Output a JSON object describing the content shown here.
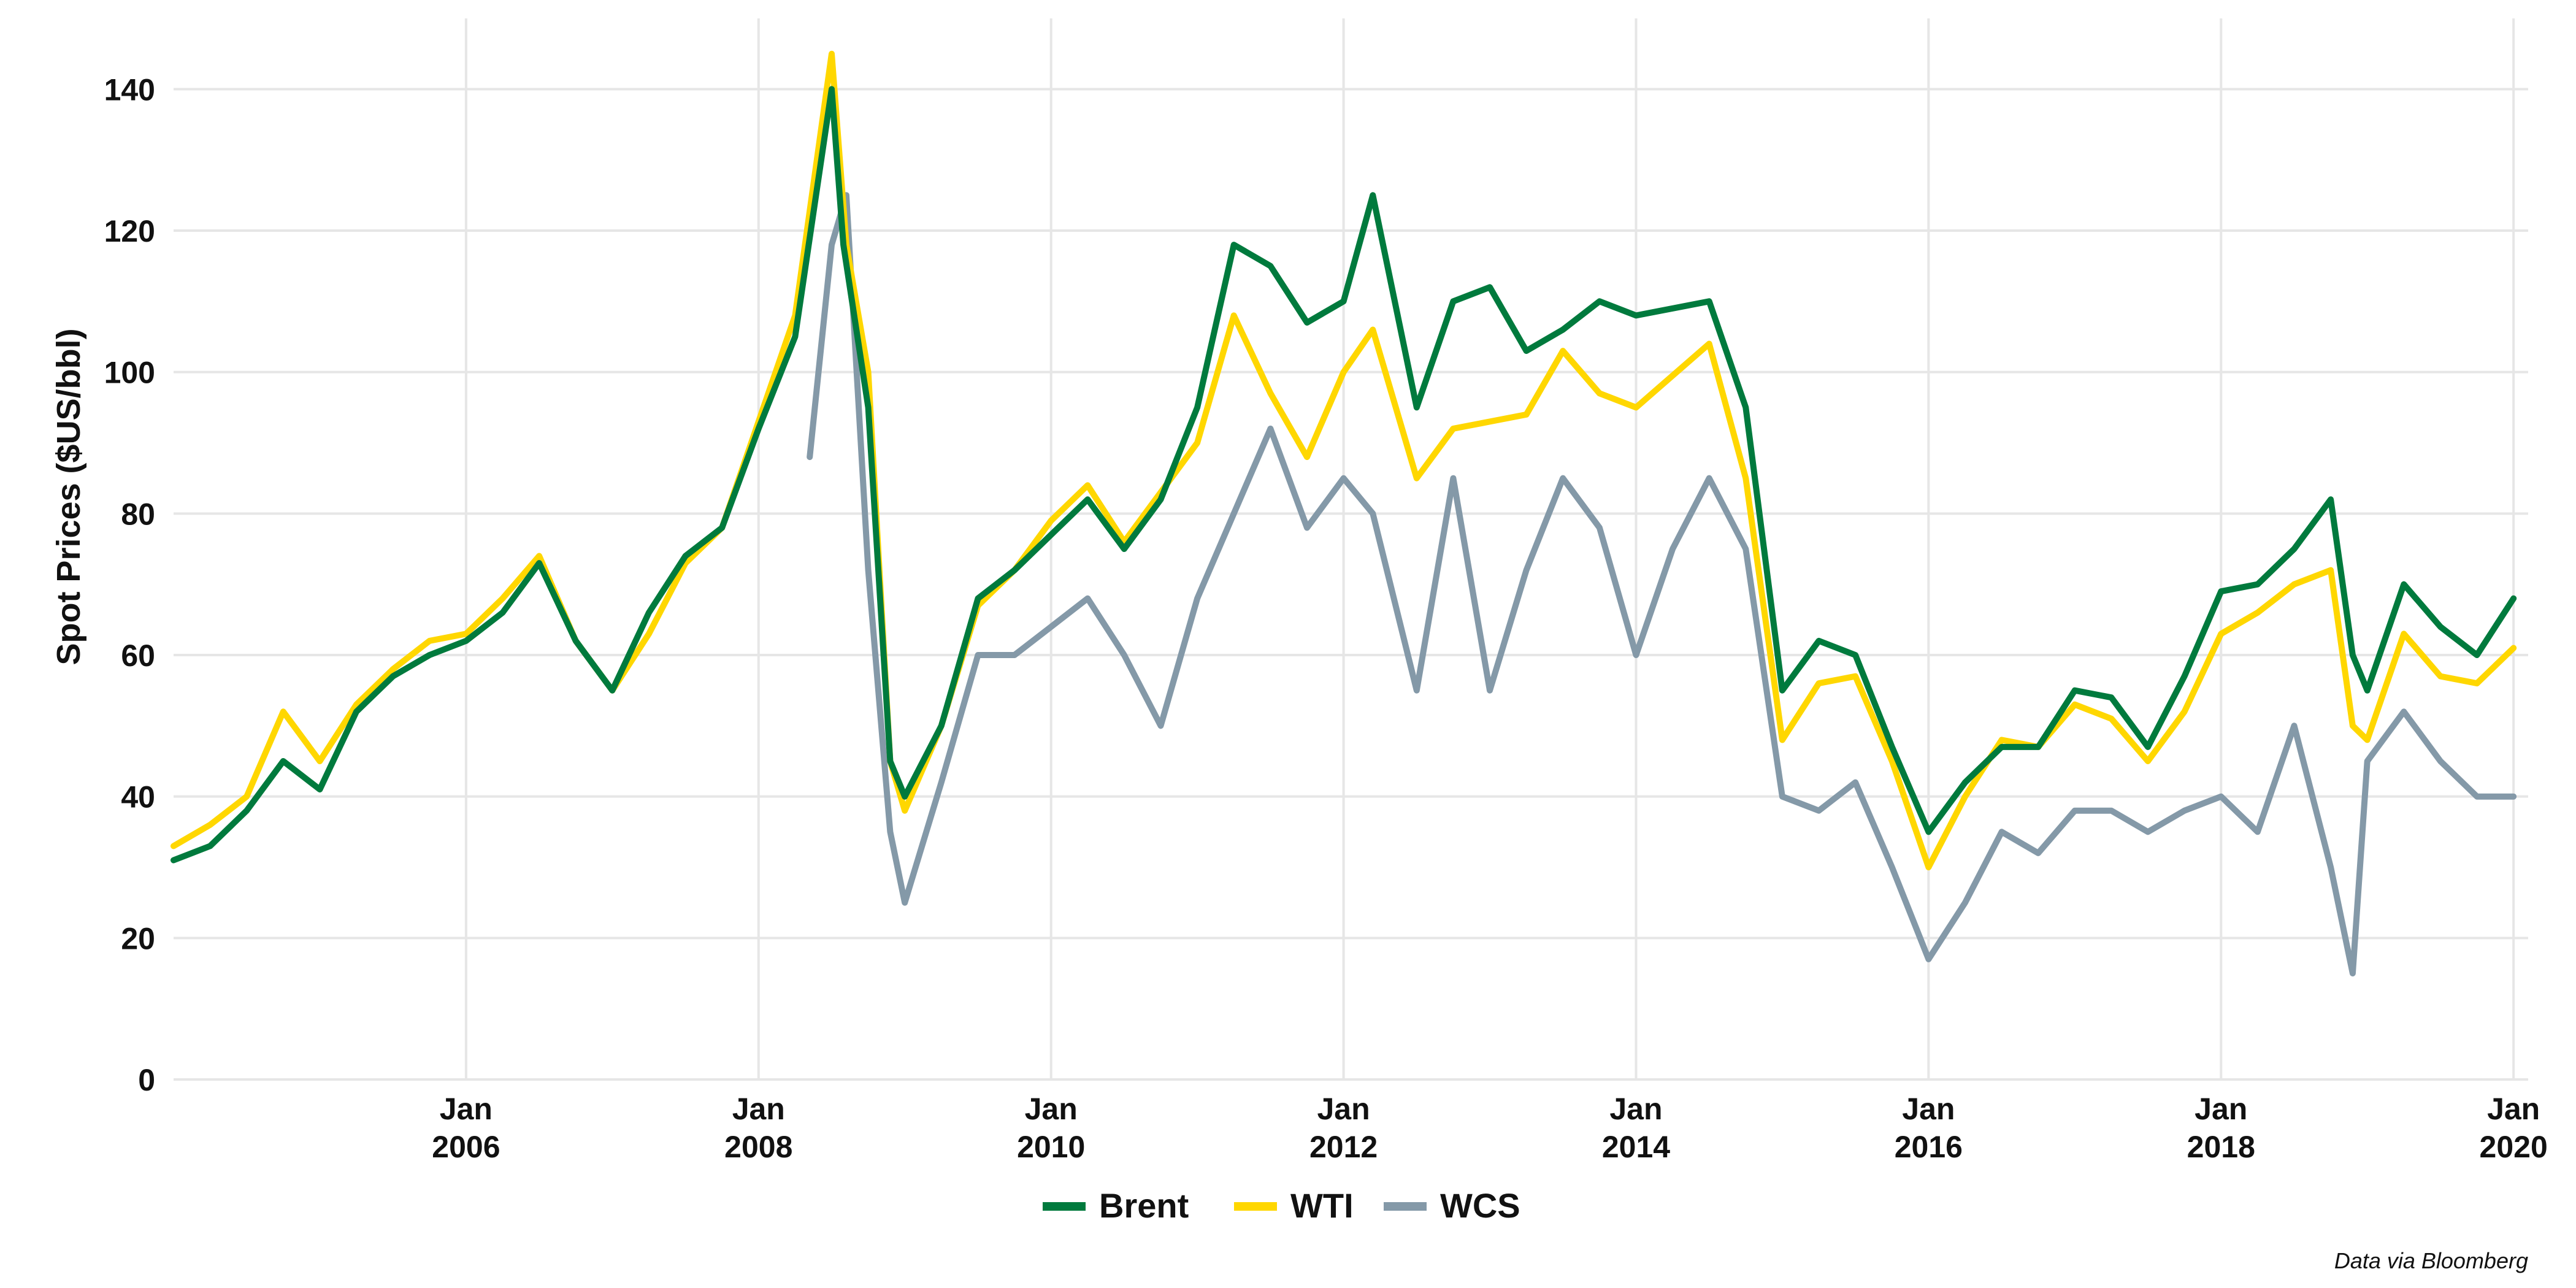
{
  "chart_data": {
    "type": "line",
    "title": "",
    "ylabel": "Spot Prices ($US/bbl)",
    "xlabel": "",
    "ylim": [
      0,
      150
    ],
    "y_ticks": [
      0,
      20,
      40,
      60,
      80,
      100,
      120,
      140
    ],
    "y_tick_labels": [
      "0",
      "20",
      "40",
      "60",
      "80",
      "100",
      "120",
      "140"
    ],
    "x_range": [
      2004.0,
      2020.1
    ],
    "x_ticks": [
      {
        "value": 2006,
        "line1": "Jan",
        "line2": "2006"
      },
      {
        "value": 2008,
        "line1": "Jan",
        "line2": "2008"
      },
      {
        "value": 2010,
        "line1": "Jan",
        "line2": "2010"
      },
      {
        "value": 2012,
        "line1": "Jan",
        "line2": "2012"
      },
      {
        "value": 2014,
        "line1": "Jan",
        "line2": "2014"
      },
      {
        "value": 2016,
        "line1": "Jan",
        "line2": "2016"
      },
      {
        "value": 2018,
        "line1": "Jan",
        "line2": "2018"
      },
      {
        "value": 2020,
        "line1": "Jan",
        "line2": "2020"
      }
    ],
    "grid": true,
    "legend_position": "bottom",
    "caption": "Data via Bloomberg",
    "series": [
      {
        "name": "Brent",
        "color": "#007A3D",
        "points": [
          [
            2004.0,
            31
          ],
          [
            2004.25,
            33
          ],
          [
            2004.5,
            38
          ],
          [
            2004.75,
            45
          ],
          [
            2005.0,
            41
          ],
          [
            2005.25,
            52
          ],
          [
            2005.5,
            57
          ],
          [
            2005.75,
            60
          ],
          [
            2006.0,
            62
          ],
          [
            2006.25,
            66
          ],
          [
            2006.5,
            73
          ],
          [
            2006.75,
            62
          ],
          [
            2007.0,
            55
          ],
          [
            2007.25,
            66
          ],
          [
            2007.5,
            74
          ],
          [
            2007.75,
            78
          ],
          [
            2008.0,
            92
          ],
          [
            2008.25,
            105
          ],
          [
            2008.5,
            140
          ],
          [
            2008.58,
            118
          ],
          [
            2008.75,
            95
          ],
          [
            2008.9,
            45
          ],
          [
            2009.0,
            40
          ],
          [
            2009.25,
            50
          ],
          [
            2009.5,
            68
          ],
          [
            2009.75,
            72
          ],
          [
            2010.0,
            77
          ],
          [
            2010.25,
            82
          ],
          [
            2010.5,
            75
          ],
          [
            2010.75,
            82
          ],
          [
            2011.0,
            95
          ],
          [
            2011.25,
            118
          ],
          [
            2011.5,
            115
          ],
          [
            2011.75,
            107
          ],
          [
            2012.0,
            110
          ],
          [
            2012.2,
            125
          ],
          [
            2012.5,
            95
          ],
          [
            2012.75,
            110
          ],
          [
            2013.0,
            112
          ],
          [
            2013.25,
            103
          ],
          [
            2013.5,
            106
          ],
          [
            2013.75,
            110
          ],
          [
            2014.0,
            108
          ],
          [
            2014.5,
            110
          ],
          [
            2014.75,
            95
          ],
          [
            2015.0,
            55
          ],
          [
            2015.25,
            62
          ],
          [
            2015.5,
            60
          ],
          [
            2015.75,
            47
          ],
          [
            2016.0,
            35
          ],
          [
            2016.25,
            42
          ],
          [
            2016.5,
            47
          ],
          [
            2016.75,
            47
          ],
          [
            2017.0,
            55
          ],
          [
            2017.25,
            54
          ],
          [
            2017.5,
            47
          ],
          [
            2017.75,
            57
          ],
          [
            2018.0,
            69
          ],
          [
            2018.25,
            70
          ],
          [
            2018.5,
            75
          ],
          [
            2018.75,
            82
          ],
          [
            2018.9,
            60
          ],
          [
            2019.0,
            55
          ],
          [
            2019.25,
            70
          ],
          [
            2019.5,
            64
          ],
          [
            2019.75,
            60
          ],
          [
            2020.0,
            68
          ]
        ]
      },
      {
        "name": "WTI",
        "color": "#FFD700",
        "points": [
          [
            2004.0,
            33
          ],
          [
            2004.25,
            36
          ],
          [
            2004.5,
            40
          ],
          [
            2004.75,
            52
          ],
          [
            2005.0,
            45
          ],
          [
            2005.25,
            53
          ],
          [
            2005.5,
            58
          ],
          [
            2005.75,
            62
          ],
          [
            2006.0,
            63
          ],
          [
            2006.25,
            68
          ],
          [
            2006.5,
            74
          ],
          [
            2006.75,
            62
          ],
          [
            2007.0,
            55
          ],
          [
            2007.25,
            63
          ],
          [
            2007.5,
            73
          ],
          [
            2007.75,
            78
          ],
          [
            2008.0,
            93
          ],
          [
            2008.25,
            108
          ],
          [
            2008.5,
            145
          ],
          [
            2008.6,
            118
          ],
          [
            2008.75,
            100
          ],
          [
            2008.9,
            45
          ],
          [
            2009.0,
            38
          ],
          [
            2009.25,
            50
          ],
          [
            2009.5,
            67
          ],
          [
            2009.75,
            72
          ],
          [
            2010.0,
            79
          ],
          [
            2010.25,
            84
          ],
          [
            2010.5,
            76
          ],
          [
            2010.75,
            83
          ],
          [
            2011.0,
            90
          ],
          [
            2011.25,
            108
          ],
          [
            2011.5,
            97
          ],
          [
            2011.75,
            88
          ],
          [
            2012.0,
            100
          ],
          [
            2012.2,
            106
          ],
          [
            2012.5,
            85
          ],
          [
            2012.75,
            92
          ],
          [
            2013.0,
            93
          ],
          [
            2013.25,
            94
          ],
          [
            2013.5,
            103
          ],
          [
            2013.75,
            97
          ],
          [
            2014.0,
            95
          ],
          [
            2014.5,
            104
          ],
          [
            2014.75,
            85
          ],
          [
            2015.0,
            48
          ],
          [
            2015.25,
            56
          ],
          [
            2015.5,
            57
          ],
          [
            2015.75,
            45
          ],
          [
            2016.0,
            30
          ],
          [
            2016.25,
            40
          ],
          [
            2016.5,
            48
          ],
          [
            2016.75,
            47
          ],
          [
            2017.0,
            53
          ],
          [
            2017.25,
            51
          ],
          [
            2017.5,
            45
          ],
          [
            2017.75,
            52
          ],
          [
            2018.0,
            63
          ],
          [
            2018.25,
            66
          ],
          [
            2018.5,
            70
          ],
          [
            2018.75,
            72
          ],
          [
            2018.9,
            50
          ],
          [
            2019.0,
            48
          ],
          [
            2019.25,
            63
          ],
          [
            2019.5,
            57
          ],
          [
            2019.75,
            56
          ],
          [
            2020.0,
            61
          ]
        ]
      },
      {
        "name": "WCS",
        "color": "#8499A8",
        "points": [
          [
            2008.35,
            88
          ],
          [
            2008.5,
            118
          ],
          [
            2008.6,
            125
          ],
          [
            2008.75,
            72
          ],
          [
            2008.9,
            35
          ],
          [
            2009.0,
            25
          ],
          [
            2009.25,
            42
          ],
          [
            2009.5,
            60
          ],
          [
            2009.75,
            60
          ],
          [
            2010.0,
            64
          ],
          [
            2010.25,
            68
          ],
          [
            2010.5,
            60
          ],
          [
            2010.75,
            50
          ],
          [
            2011.0,
            68
          ],
          [
            2011.25,
            80
          ],
          [
            2011.5,
            92
          ],
          [
            2011.75,
            78
          ],
          [
            2012.0,
            85
          ],
          [
            2012.2,
            80
          ],
          [
            2012.5,
            55
          ],
          [
            2012.75,
            85
          ],
          [
            2013.0,
            55
          ],
          [
            2013.25,
            72
          ],
          [
            2013.5,
            85
          ],
          [
            2013.75,
            78
          ],
          [
            2014.0,
            60
          ],
          [
            2014.25,
            75
          ],
          [
            2014.5,
            85
          ],
          [
            2014.75,
            75
          ],
          [
            2015.0,
            40
          ],
          [
            2015.25,
            38
          ],
          [
            2015.5,
            42
          ],
          [
            2015.75,
            30
          ],
          [
            2016.0,
            17
          ],
          [
            2016.25,
            25
          ],
          [
            2016.5,
            35
          ],
          [
            2016.75,
            32
          ],
          [
            2017.0,
            38
          ],
          [
            2017.25,
            38
          ],
          [
            2017.5,
            35
          ],
          [
            2017.75,
            38
          ],
          [
            2018.0,
            40
          ],
          [
            2018.25,
            35
          ],
          [
            2018.5,
            50
          ],
          [
            2018.75,
            30
          ],
          [
            2018.9,
            15
          ],
          [
            2019.0,
            45
          ],
          [
            2019.25,
            52
          ],
          [
            2019.5,
            45
          ],
          [
            2019.75,
            40
          ],
          [
            2020.0,
            40
          ]
        ]
      }
    ]
  }
}
